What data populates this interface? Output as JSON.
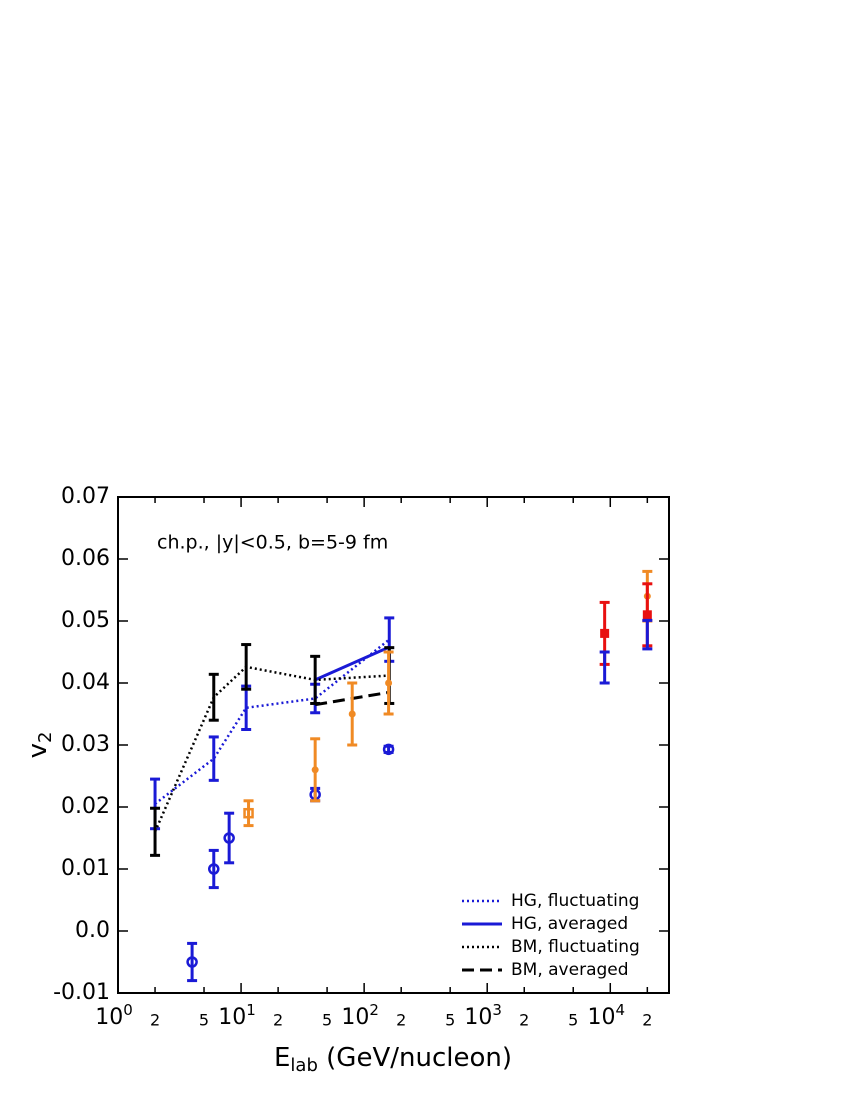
{
  "chart_data": {
    "type": "errorbar",
    "annotation": "ch.p., |y|<0.5, b=5-9 fm",
    "xlabel": {
      "main": "E",
      "sub": "lab",
      "rest": " (GeV/nucleon)"
    },
    "ylabel": {
      "main": "v",
      "sub": "2"
    },
    "xscale": "log",
    "xlim": [
      1,
      30000
    ],
    "ylim": [
      -0.01,
      0.07
    ],
    "xticks": [
      {
        "value": 1,
        "label": "10",
        "exponent": "0"
      },
      2,
      5,
      {
        "value": 10,
        "label": "10",
        "exponent": "1"
      },
      {
        "value": 20,
        "label": "2"
      },
      {
        "value": 50,
        "label": "5"
      },
      {
        "value": 100,
        "label": "10",
        "exponent": "2"
      },
      {
        "value": 200,
        "label": "2"
      },
      {
        "value": 500,
        "label": "5"
      },
      {
        "value": 1000,
        "label": "10",
        "exponent": "3"
      },
      {
        "value": 2000,
        "label": "2"
      },
      {
        "value": 5000,
        "label": "5"
      },
      {
        "value": 10000,
        "label": "10",
        "exponent": "4"
      },
      {
        "value": 20000,
        "label": "2"
      }
    ],
    "yticks": [
      -0.01,
      {
        "value": 0,
        "label": "0.0"
      },
      0.01,
      0.02,
      0.03,
      0.04,
      0.05,
      0.06,
      0.07
    ],
    "legend": "lower right",
    "series": [
      {
        "name": "HG, fluctuating",
        "color": "#1a1ad6",
        "line": "dotted",
        "x": [
          2,
          6,
          11,
          40,
          160
        ],
        "values": [
          0.0205,
          0.0278,
          0.036,
          0.0375,
          0.047
        ],
        "errors": [
          0.004,
          0.0035,
          0.0035,
          0.0023,
          0.0035
        ]
      },
      {
        "name": "HG, averaged",
        "color": "#1a1ad6",
        "line": "solid",
        "x": [
          40,
          160
        ],
        "values": [
          0.0405,
          0.0458
        ]
      },
      {
        "name": "BM, fluctuating",
        "color": "#000000",
        "line": "dotted",
        "x": [
          2,
          6,
          11,
          40,
          160
        ],
        "values": [
          0.016,
          0.0377,
          0.0426,
          0.0405,
          0.0412
        ],
        "errors": [
          0.0038,
          0.0037,
          0.0036,
          0.0038,
          0.0045
        ]
      },
      {
        "name": "BM, averaged",
        "color": "#000000",
        "line": "dashed",
        "x": [
          40,
          160
        ],
        "values": [
          0.0365,
          0.0385
        ]
      },
      {
        "color": "#1a1ad6",
        "marker": "circle-open",
        "x": [
          4,
          6,
          8,
          40,
          158
        ],
        "values": [
          -0.005,
          0.01,
          0.015,
          0.022,
          0.0293
        ],
        "errors": [
          0.003,
          0.003,
          0.004,
          0.001,
          0.0005
        ]
      },
      {
        "color": "#f08a24",
        "marker": "circle",
        "x": [
          40,
          80,
          158,
          20000
        ],
        "values": [
          0.026,
          0.035,
          0.04,
          0.054
        ],
        "errors": [
          0.005,
          0.005,
          0.005,
          0.004
        ]
      },
      {
        "color": "#f08a24",
        "marker": "square-open",
        "x": [
          11.5
        ],
        "values": [
          0.019
        ],
        "errors": [
          0.002
        ]
      },
      {
        "color": "#e81010",
        "marker": "square",
        "x": [
          9000,
          20000
        ],
        "values": [
          0.048,
          0.051
        ],
        "errors": [
          0.005,
          0.005
        ]
      },
      {
        "color": "#1a1ad6",
        "x": [
          9000,
          20000
        ],
        "values": [
          0.0425,
          0.0478
        ],
        "errors": [
          0.0025,
          0.0023
        ]
      }
    ]
  }
}
